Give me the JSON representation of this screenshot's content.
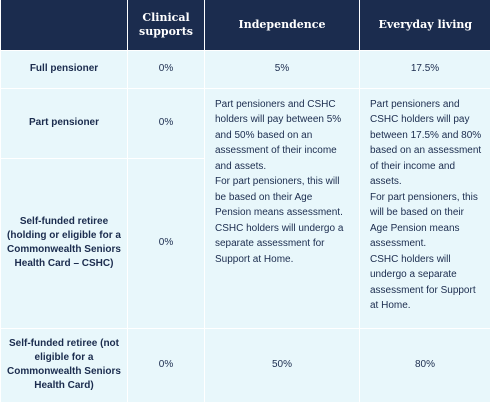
{
  "table": {
    "headers": [
      "",
      "Clinical supports",
      "Independence",
      "Everyday living"
    ],
    "rows": {
      "full": {
        "label": "Full pensioner",
        "clinical": "0%",
        "independence": "5%",
        "everyday": "17.5%"
      },
      "part": {
        "label": "Part pensioner",
        "clinical": "0%"
      },
      "self_holding": {
        "label": "Self-funded retiree (holding or eligible for a Commonwealth Seniors Health Card – CSHC)",
        "clinical": "0%"
      },
      "self_not": {
        "label": "Self-funded retiree (not eligible for a Commonwealth Seniors Health Card)",
        "clinical": "0%",
        "independence": "50%",
        "everyday": "80%"
      }
    },
    "merged_notes": {
      "independence": [
        "Part pensioners and CSHC holders will pay between 5% and 50% based on an assessment of their income and assets.",
        "For part pensioners, this will be based on their Age Pension means assessment.",
        "CSHC holders will undergo a separate assessment for Support at Home."
      ],
      "everyday": [
        "Part pensioners and CSHC holders will pay between 17.5% and 80% based on an assessment of their income and assets.",
        "For part pensioners, this will be based on their Age Pension means assessment.",
        "CSHC holders will undergo a separate assessment for Support at Home."
      ]
    }
  }
}
